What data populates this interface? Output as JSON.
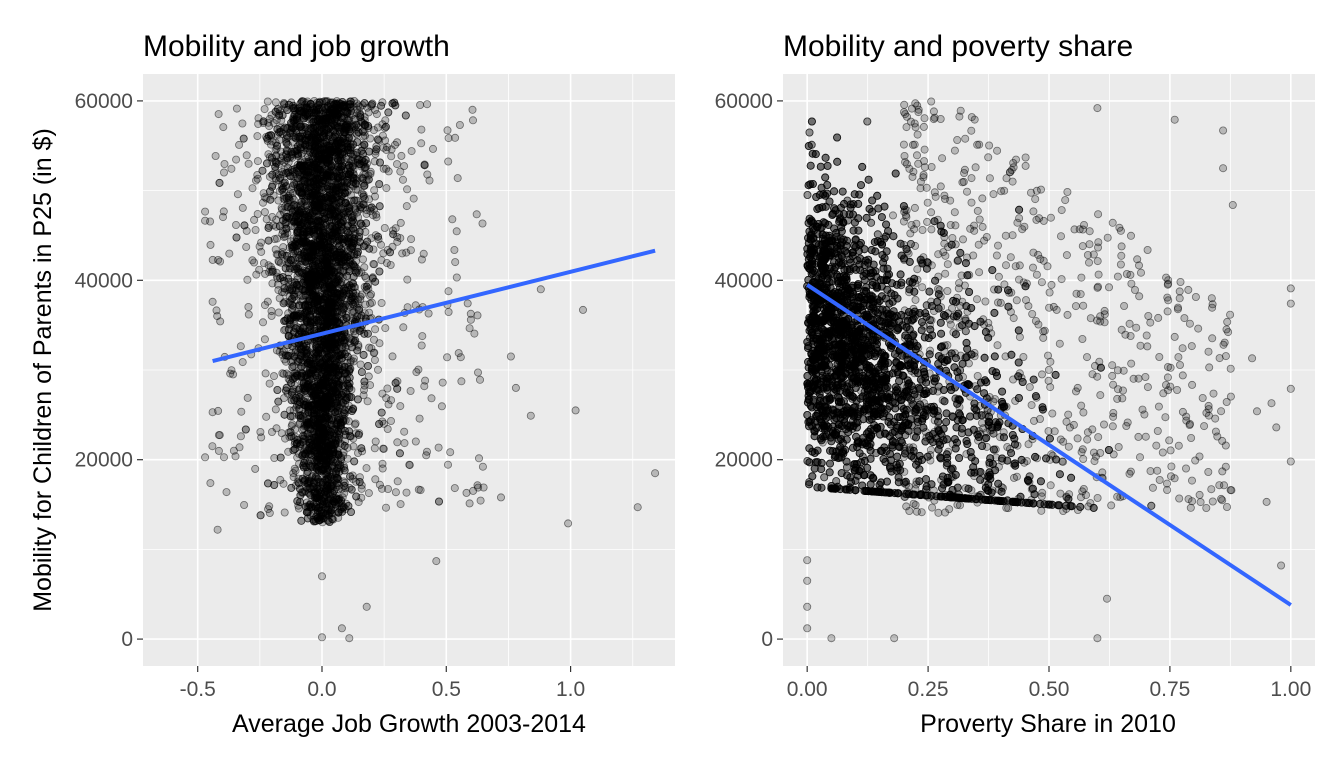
{
  "chart_data": [
    {
      "type": "scatter",
      "title": "Mobility and job growth",
      "xlabel": "Average Job Growth 2003-2014",
      "ylabel": "Mobility for Children of Parents in P25 (in $)",
      "xlim": [
        -0.72,
        1.42
      ],
      "ylim": [
        -3000,
        63000
      ],
      "x_ticks": [
        -0.5,
        0.0,
        0.5,
        1.0
      ],
      "x_tick_labels": [
        "-0.5",
        "0.0",
        "0.5",
        "1.0"
      ],
      "y_ticks": [
        0,
        20000,
        40000,
        60000
      ],
      "y_tick_labels": [
        "0",
        "20000",
        "40000",
        "60000"
      ],
      "grid": true,
      "fit_line": {
        "x": [
          -0.44,
          1.34
        ],
        "y": [
          31000,
          43300
        ]
      },
      "notable_points": [
        {
          "x": 1.34,
          "y": 18500
        },
        {
          "x": 1.27,
          "y": 14700
        },
        {
          "x": 0.99,
          "y": 12900
        },
        {
          "x": 1.02,
          "y": 25500
        },
        {
          "x": 1.05,
          "y": 36700
        },
        {
          "x": 0.88,
          "y": 39000
        },
        {
          "x": 0.84,
          "y": 24900
        },
        {
          "x": 0.78,
          "y": 28000
        },
        {
          "x": 0.76,
          "y": 31500
        },
        {
          "x": 0.72,
          "y": 15800
        },
        {
          "x": 0.65,
          "y": 16900
        },
        {
          "x": 0.46,
          "y": 8700
        },
        {
          "x": 0.18,
          "y": 3600
        },
        {
          "x": 0.08,
          "y": 1200
        },
        {
          "x": 0.11,
          "y": 100
        },
        {
          "x": 0.0,
          "y": 200
        },
        {
          "x": 0.0,
          "y": 7000
        },
        {
          "x": -0.42,
          "y": 12200
        },
        {
          "x": -0.44,
          "y": 25300
        },
        {
          "x": -0.44,
          "y": 37600
        },
        {
          "x": -0.41,
          "y": 42100
        }
      ],
      "bulk_distribution": "dense cloud centred near x = 0.0 spanning y 13000–60000, capped at 60000"
    },
    {
      "type": "scatter",
      "title": "Mobility and poverty share",
      "xlabel": "Proverty Share in 2010",
      "ylabel": "",
      "xlim": [
        -0.05,
        1.05
      ],
      "ylim": [
        -3000,
        63000
      ],
      "x_ticks": [
        0.0,
        0.25,
        0.5,
        0.75,
        1.0
      ],
      "x_tick_labels": [
        "0.00",
        "0.25",
        "0.50",
        "0.75",
        "1.00"
      ],
      "y_ticks": [
        0,
        20000,
        40000,
        60000
      ],
      "y_tick_labels": [
        "0",
        "20000",
        "40000",
        "60000"
      ],
      "grid": true,
      "fit_line": {
        "x": [
          0.0,
          1.0
        ],
        "y": [
          39500,
          3800
        ]
      },
      "notable_points": [
        {
          "x": 1.0,
          "y": 39100
        },
        {
          "x": 1.0,
          "y": 37400
        },
        {
          "x": 1.0,
          "y": 27900
        },
        {
          "x": 1.0,
          "y": 19800
        },
        {
          "x": 0.98,
          "y": 8200
        },
        {
          "x": 0.96,
          "y": 26300
        },
        {
          "x": 0.97,
          "y": 23600
        },
        {
          "x": 0.93,
          "y": 25400
        },
        {
          "x": 0.95,
          "y": 15300
        },
        {
          "x": 0.92,
          "y": 31300
        },
        {
          "x": 0.88,
          "y": 48400
        },
        {
          "x": 0.86,
          "y": 56700
        },
        {
          "x": 0.86,
          "y": 52500
        },
        {
          "x": 0.76,
          "y": 57900
        },
        {
          "x": 0.6,
          "y": 59200
        },
        {
          "x": 0.6,
          "y": 100
        },
        {
          "x": 0.62,
          "y": 4500
        },
        {
          "x": 0.18,
          "y": 100
        },
        {
          "x": 0.05,
          "y": 100
        },
        {
          "x": 0.0,
          "y": 1200
        },
        {
          "x": 0.0,
          "y": 3600
        },
        {
          "x": 0.0,
          "y": 6500
        },
        {
          "x": 0.0,
          "y": 8800
        }
      ],
      "bulk_distribution": "dense cloud near x = 0.0–0.15 spanning y 15000–60000, thinning and declining as poverty share rises"
    }
  ]
}
